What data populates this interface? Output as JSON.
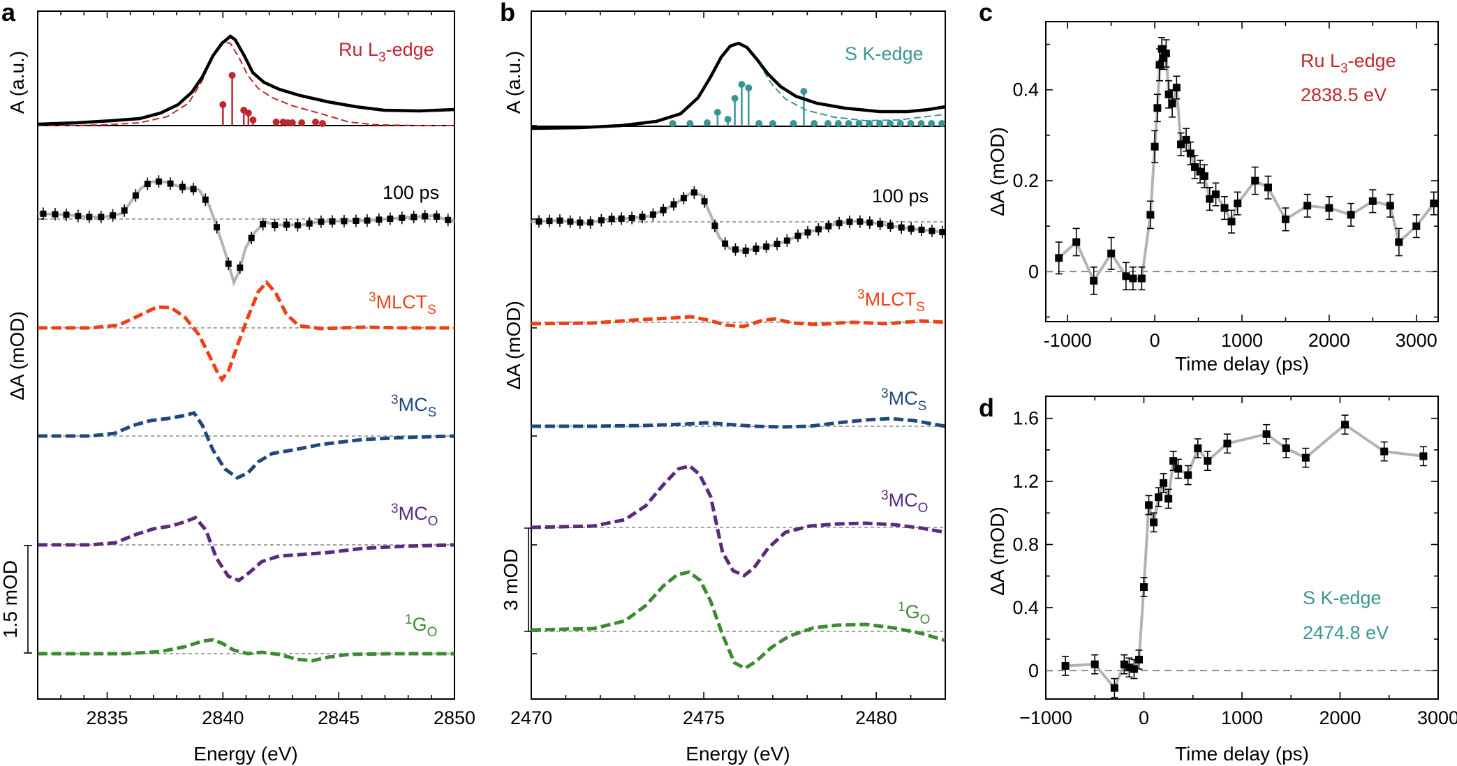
{
  "colors": {
    "ru": "#c0262d",
    "s": "#3a9596",
    "mlct": "#ee4015",
    "mcs": "#1f487c",
    "mco": "#5b2a7e",
    "go": "#3e8a34",
    "data": "#000000",
    "connector": "#b3b3b3"
  },
  "panel_a": {
    "label": "a",
    "xlabel": "Energy (eV)",
    "ylabel_top": "A (a.u.)",
    "ylabel_main": "ΔA (mOD)",
    "scalebar": "1.5 mOD",
    "xlim": [
      2832,
      2850
    ],
    "xticks": [
      "2835",
      "2840",
      "2845",
      "2850"
    ],
    "xtick_values": [
      2835,
      2840,
      2845,
      2850
    ],
    "edge": {
      "pre": "Ru L",
      "sub": "3",
      "post": "-edge"
    },
    "delay": "100 ps",
    "traces": [
      {
        "sup": "3",
        "name": "MLCT",
        "sub": "S"
      },
      {
        "sup": "3",
        "name": "MC",
        "sub": "S"
      },
      {
        "sup": "3",
        "name": "MC",
        "sub": "O"
      },
      {
        "sup": "1",
        "name": "G",
        "sub": "O"
      }
    ],
    "sticks": [
      [
        2840.0,
        0.3
      ],
      [
        2840.4,
        0.72
      ],
      [
        2840.9,
        0.22
      ],
      [
        2841.1,
        0.18
      ],
      [
        2841.3,
        0.08
      ],
      [
        2842.3,
        0.05
      ],
      [
        2842.6,
        0.05
      ],
      [
        2842.8,
        0.04
      ],
      [
        2843.0,
        0.04
      ],
      [
        2843.4,
        0.04
      ],
      [
        2844.0,
        0.05
      ],
      [
        2844.3,
        0.03
      ]
    ]
  },
  "panel_b": {
    "label": "b",
    "xlabel": "Energy (eV)",
    "ylabel_top": "A (a.u.)",
    "ylabel_main": "ΔA (mOD)",
    "scalebar": "3 mOD",
    "xlim": [
      2470,
      2482
    ],
    "xticks": [
      "2470",
      "2475",
      "2480"
    ],
    "xtick_values": [
      2470,
      2475,
      2480
    ],
    "edge": {
      "pre": "S K-edge",
      "sub": "",
      "post": ""
    },
    "delay": "100 ps",
    "traces": [
      {
        "sup": "3",
        "name": "MLCT",
        "sub": "S"
      },
      {
        "sup": "3",
        "name": "MC",
        "sub": "S"
      },
      {
        "sup": "3",
        "name": "MC",
        "sub": "O"
      },
      {
        "sup": "1",
        "name": "G",
        "sub": "O"
      }
    ],
    "sticks": [
      [
        2474.1,
        0.04
      ],
      [
        2474.6,
        0.04
      ],
      [
        2475.1,
        0.05
      ],
      [
        2475.4,
        0.2
      ],
      [
        2475.7,
        0.1
      ],
      [
        2475.9,
        0.4
      ],
      [
        2476.1,
        0.6
      ],
      [
        2476.3,
        0.55
      ],
      [
        2476.6,
        0.04
      ],
      [
        2477.0,
        0.04
      ],
      [
        2477.6,
        0.04
      ],
      [
        2477.9,
        0.5
      ],
      [
        2478.2,
        0.04
      ],
      [
        2478.6,
        0.04
      ],
      [
        2478.9,
        0.04
      ],
      [
        2479.2,
        0.04
      ],
      [
        2479.5,
        0.04
      ],
      [
        2479.8,
        0.04
      ],
      [
        2480.1,
        0.04
      ],
      [
        2480.4,
        0.04
      ],
      [
        2480.7,
        0.04
      ],
      [
        2481.0,
        0.04
      ],
      [
        2481.3,
        0.04
      ],
      [
        2481.6,
        0.04
      ],
      [
        2481.9,
        0.04
      ]
    ]
  },
  "panel_c": {
    "label": "c",
    "xlabel": "Time delay (ps)",
    "ylabel": "ΔA (mOD)",
    "xlim": [
      -1250,
      3250
    ],
    "ylim": [
      -0.11,
      0.55
    ],
    "xticks": [
      "-1000",
      "0",
      "1000",
      "2000",
      "3000"
    ],
    "xtick_values": [
      -1000,
      0,
      1000,
      2000,
      3000
    ],
    "yticks": [
      "0",
      "0.2",
      "0.4"
    ],
    "ytick_values": [
      0,
      0.2,
      0.4
    ],
    "annotation_1": {
      "pre": "Ru L",
      "sub": "3",
      "post": "-edge"
    },
    "annotation_2": "2838.5 eV",
    "x": [
      -1100,
      -900,
      -700,
      -500,
      -330,
      -250,
      -150,
      -50,
      0,
      30,
      55,
      80,
      100,
      130,
      160,
      200,
      250,
      300,
      360,
      410,
      460,
      520,
      570,
      630,
      700,
      800,
      880,
      950,
      1150,
      1300,
      1500,
      1750,
      2000,
      2250,
      2500,
      2700,
      2800,
      3000,
      3200
    ],
    "y": [
      0.03,
      0.065,
      -0.02,
      0.04,
      -0.01,
      -0.015,
      -0.015,
      0.125,
      0.275,
      0.36,
      0.455,
      0.49,
      0.47,
      0.48,
      0.39,
      0.37,
      0.405,
      0.28,
      0.29,
      0.26,
      0.23,
      0.22,
      0.21,
      0.16,
      0.17,
      0.14,
      0.11,
      0.15,
      0.2,
      0.185,
      0.115,
      0.145,
      0.14,
      0.125,
      0.155,
      0.145,
      0.065,
      0.1,
      0.15
    ],
    "err": [
      0.035,
      0.03,
      0.03,
      0.035,
      0.03,
      0.025,
      0.025,
      0.03,
      0.035,
      0.03,
      0.035,
      0.025,
      0.025,
      0.03,
      0.03,
      0.03,
      0.025,
      0.025,
      0.025,
      0.025,
      0.025,
      0.025,
      0.025,
      0.025,
      0.025,
      0.025,
      0.025,
      0.025,
      0.03,
      0.025,
      0.025,
      0.025,
      0.025,
      0.025,
      0.025,
      0.025,
      0.03,
      0.025,
      0.025
    ]
  },
  "panel_d": {
    "label": "d",
    "xlabel": "Time delay (ps)",
    "ylabel": "ΔA (mOD)",
    "xlim": [
      -1000,
      3000
    ],
    "ylim": [
      -0.18,
      1.74
    ],
    "xticks": [
      "−1000",
      "0",
      "1000",
      "2000",
      "3000"
    ],
    "xtick_values": [
      -1000,
      0,
      1000,
      2000,
      3000
    ],
    "yticks": [
      "0",
      "0.4",
      "0.8",
      "1.2",
      "1.6"
    ],
    "ytick_values": [
      0,
      0.4,
      0.8,
      1.2,
      1.6
    ],
    "annotation_1": {
      "pre": "S K-edge",
      "sub": "",
      "post": ""
    },
    "annotation_2": "2474.8 eV",
    "x": [
      -800,
      -500,
      -300,
      -200,
      -150,
      -100,
      -50,
      0,
      50,
      100,
      150,
      200,
      250,
      300,
      350,
      450,
      550,
      650,
      850,
      1250,
      1450,
      1650,
      2050,
      2450,
      2850
    ],
    "y": [
      0.03,
      0.04,
      -0.11,
      0.04,
      0.02,
      0.01,
      0.07,
      0.53,
      1.05,
      0.94,
      1.1,
      1.19,
      1.09,
      1.33,
      1.28,
      1.24,
      1.41,
      1.33,
      1.44,
      1.5,
      1.41,
      1.35,
      1.56,
      1.39,
      1.36
    ]
  }
}
